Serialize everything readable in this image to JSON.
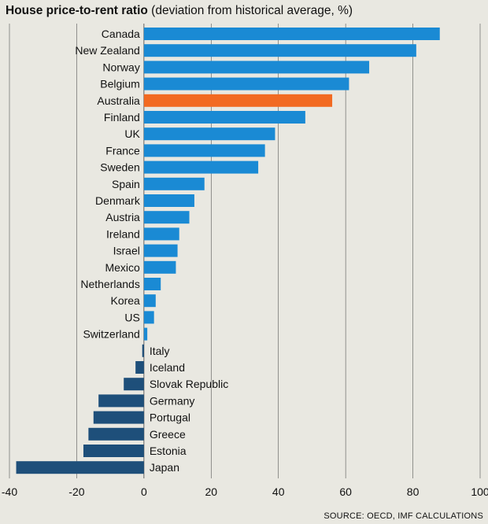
{
  "title": "House price-to-rent ratio",
  "subtitle": "(deviation from historical average, %)",
  "source": "SOURCE: OECD, IMF CALCULATIONS",
  "colors": {
    "positive": "#1a8ad4",
    "negative": "#1e4f7a",
    "highlight": "#f26a21",
    "grid": "#555555"
  },
  "chart_data": {
    "type": "bar",
    "orientation": "horizontal",
    "title": "House price-to-rent ratio",
    "subtitle": "(deviation from historical average, %)",
    "xlim": [
      -40,
      100
    ],
    "xticks": [
      -40,
      -20,
      0,
      20,
      40,
      60,
      80,
      100
    ],
    "grid": true,
    "highlight": "Australia",
    "categories": [
      "Canada",
      "New Zealand",
      "Norway",
      "Belgium",
      "Australia",
      "Finland",
      "UK",
      "France",
      "Sweden",
      "Spain",
      "Denmark",
      "Austria",
      "Ireland",
      "Israel",
      "Mexico",
      "Netherlands",
      "Korea",
      "US",
      "Switzerland",
      "Italy",
      "Iceland",
      "Slovak Republic",
      "Germany",
      "Portugal",
      "Greece",
      "Estonia",
      "Japan"
    ],
    "values": [
      88,
      81,
      67,
      61,
      56,
      48,
      39,
      36,
      34,
      18,
      15,
      13.5,
      10.5,
      10,
      9.5,
      5,
      3.5,
      3,
      1,
      -0.5,
      -2.5,
      -6,
      -13.5,
      -15,
      -16.5,
      -18,
      -38
    ]
  }
}
